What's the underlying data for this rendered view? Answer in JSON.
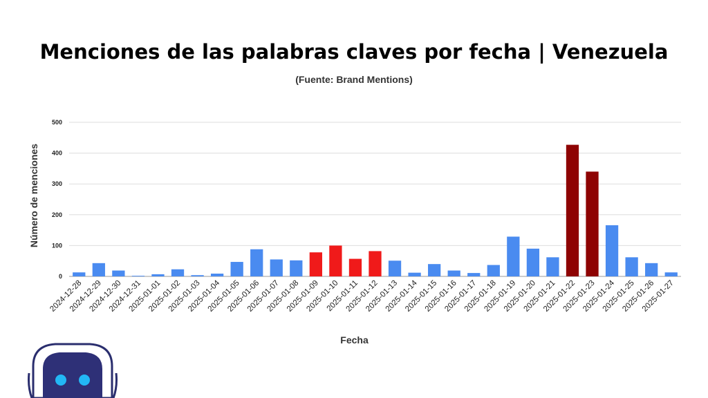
{
  "header": {
    "title": "Menciones de las palabras claves por fecha | Venezuela",
    "subtitle": "(Fuente: Brand Mentions)"
  },
  "colors": {
    "default": "#4a8bf0",
    "highlight_red": "#f01a1a",
    "highlight_darkred": "#8e0303",
    "green_bar": "#5fa04a",
    "grid": "#dddddd",
    "axis_text": "#222222"
  },
  "mascot_icon": "robot-icon",
  "chart_data": {
    "type": "bar",
    "title": "Menciones de las palabras claves por fecha | Venezuela",
    "subtitle": "(Fuente: Brand Mentions)",
    "xlabel": "Fecha",
    "ylabel": "Número de menciones",
    "ylim": [
      0,
      500
    ],
    "yticks": [
      0,
      100,
      200,
      300,
      400,
      500
    ],
    "grid": true,
    "categories": [
      "2024-12-28",
      "2024-12-29",
      "2024-12-30",
      "2024-12-31",
      "2025-01-01",
      "2025-01-02",
      "2025-01-03",
      "2025-01-04",
      "2025-01-05",
      "2025-01-06",
      "2025-01-07",
      "2025-01-08",
      "2025-01-09",
      "2025-01-10",
      "2025-01-11",
      "2025-01-12",
      "2025-01-13",
      "2025-01-14",
      "2025-01-15",
      "2025-01-16",
      "2025-01-17",
      "2025-01-18",
      "2025-01-19",
      "2025-01-20",
      "2025-01-21",
      "2025-01-22",
      "2025-01-23",
      "2025-01-24",
      "2025-01-25",
      "2025-01-26",
      "2025-01-27"
    ],
    "values": [
      13,
      43,
      19,
      2,
      7,
      23,
      4,
      9,
      47,
      88,
      55,
      52,
      78,
      100,
      57,
      82,
      51,
      12,
      40,
      19,
      11,
      37,
      129,
      90,
      62,
      427,
      340,
      166,
      62,
      43,
      13
    ],
    "bar_colors": [
      "#4a8bf0",
      "#4a8bf0",
      "#4a8bf0",
      "#4a8bf0",
      "#4a8bf0",
      "#4a8bf0",
      "#4a8bf0",
      "#4a8bf0",
      "#4a8bf0",
      "#4a8bf0",
      "#4a8bf0",
      "#4a8bf0",
      "#f01a1a",
      "#f01a1a",
      "#f01a1a",
      "#f01a1a",
      "#4a8bf0",
      "#4a8bf0",
      "#4a8bf0",
      "#4a8bf0",
      "#4a8bf0",
      "#4a8bf0",
      "#4a8bf0",
      "#4a8bf0",
      "#4a8bf0",
      "#8e0303",
      "#8e0303",
      "#4a8bf0",
      "#4a8bf0",
      "#4a8bf0",
      "#4a8bf0"
    ]
  }
}
